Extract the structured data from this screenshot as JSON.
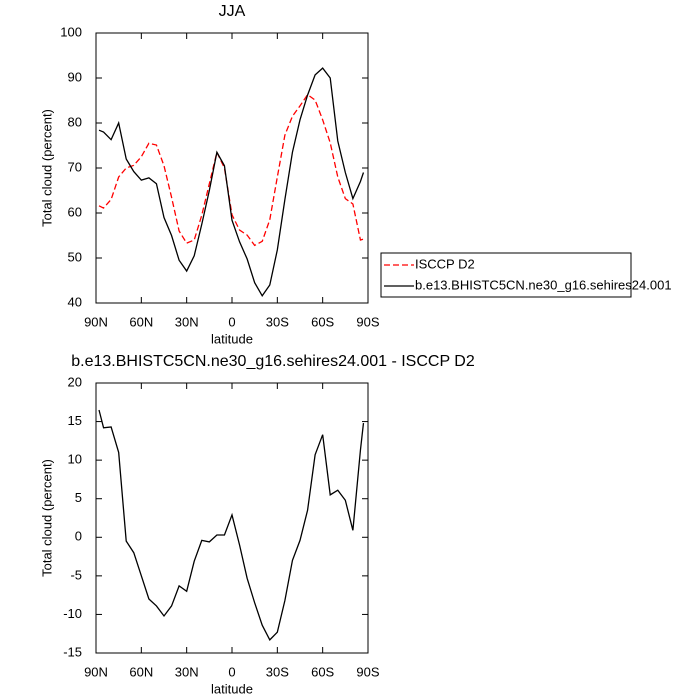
{
  "chart_data": [
    {
      "type": "line",
      "title": "JJA",
      "xlabel": "latitude",
      "ylabel": "Total cloud (percent)",
      "x": [
        88,
        85,
        80,
        75,
        70,
        65,
        60,
        55,
        50,
        45,
        40,
        35,
        30,
        25,
        20,
        15,
        10,
        5,
        0,
        -5,
        -10,
        -15,
        -20,
        -25,
        -30,
        -35,
        -40,
        -45,
        -50,
        -55,
        -60,
        -65,
        -70,
        -75,
        -80,
        -85,
        -87
      ],
      "series": [
        {
          "name": "ISCCP D2",
          "color": "#ff0000",
          "line_style": "dashed",
          "values": [
            61.6,
            61.1,
            63,
            68,
            70,
            70.6,
            72.5,
            75.5,
            75.1,
            70.5,
            63.5,
            56,
            53.3,
            54,
            59.5,
            66.5,
            73.5,
            70,
            59.6,
            56.2,
            55.1,
            52.8,
            53.7,
            58.5,
            68,
            77.3,
            81.5,
            83.8,
            86.3,
            85.1,
            80.7,
            75.6,
            68,
            63.2,
            62,
            54,
            54.2
          ]
        },
        {
          "name": "b.e13.BHISTC5CN.ne30_g16.sehires24.001",
          "color": "#000000",
          "line_style": "solid",
          "values": [
            78.4,
            78,
            76.3,
            80,
            72,
            69.2,
            67.3,
            67.8,
            66.5,
            59,
            55,
            49.5,
            47.1,
            50.5,
            57.5,
            65,
            73.5,
            70.5,
            58.4,
            53.6,
            49.8,
            44.5,
            41.6,
            44,
            51.8,
            63,
            73.5,
            80.7,
            86.2,
            90.7,
            92.2,
            90,
            76,
            69,
            63.2,
            67,
            69
          ]
        }
      ],
      "xlim": [
        90,
        -90
      ],
      "xticks": [
        {
          "value": 90,
          "label": "90N"
        },
        {
          "value": 60,
          "label": "60N"
        },
        {
          "value": 30,
          "label": "30N"
        },
        0,
        {
          "value": -30,
          "label": "30S"
        },
        {
          "value": -60,
          "label": "60S"
        },
        {
          "value": -90,
          "label": "90S"
        }
      ],
      "ylim": [
        40,
        100
      ],
      "yticks": [
        40,
        50,
        60,
        70,
        80,
        90,
        100
      ],
      "legend": "right"
    },
    {
      "type": "line",
      "title": "b.e13.BHISTC5CN.ne30_g16.sehires24.001 - ISCCP D2",
      "xlabel": "latitude",
      "ylabel": "Total cloud (percent)",
      "x": [
        88,
        85,
        80,
        75,
        70,
        65,
        60,
        55,
        50,
        45,
        40,
        35,
        30,
        25,
        20,
        15,
        10,
        5,
        0,
        -5,
        -10,
        -15,
        -20,
        -25,
        -30,
        -35,
        -40,
        -45,
        -50,
        -55,
        -60,
        -65,
        -70,
        -75,
        -80,
        -85,
        -87
      ],
      "values": [
        16.5,
        14.2,
        14.3,
        11,
        -0.5,
        -2,
        -5,
        -8,
        -8.9,
        -10.2,
        -8.9,
        -6.3,
        -7,
        -3.1,
        -0.4,
        -0.6,
        0.3,
        0.3,
        2.9,
        -1,
        -5.3,
        -8.5,
        -11.4,
        -13.3,
        -12.3,
        -8.2,
        -3,
        -0.4,
        3.5,
        10.7,
        13.3,
        5.5,
        6.1,
        4.8,
        0.9,
        11.3,
        14.8
      ],
      "color": "#000000",
      "xlim": [
        90,
        -90
      ],
      "xticks": [
        {
          "value": 90,
          "label": "90N"
        },
        {
          "value": 60,
          "label": "60N"
        },
        {
          "value": 30,
          "label": "30N"
        },
        0,
        {
          "value": -30,
          "label": "30S"
        },
        {
          "value": -60,
          "label": "60S"
        },
        {
          "value": -90,
          "label": "90S"
        }
      ],
      "ylim": [
        -15,
        20
      ],
      "yticks": [
        -15,
        -10,
        -5,
        0,
        5,
        10,
        15,
        20
      ]
    }
  ]
}
